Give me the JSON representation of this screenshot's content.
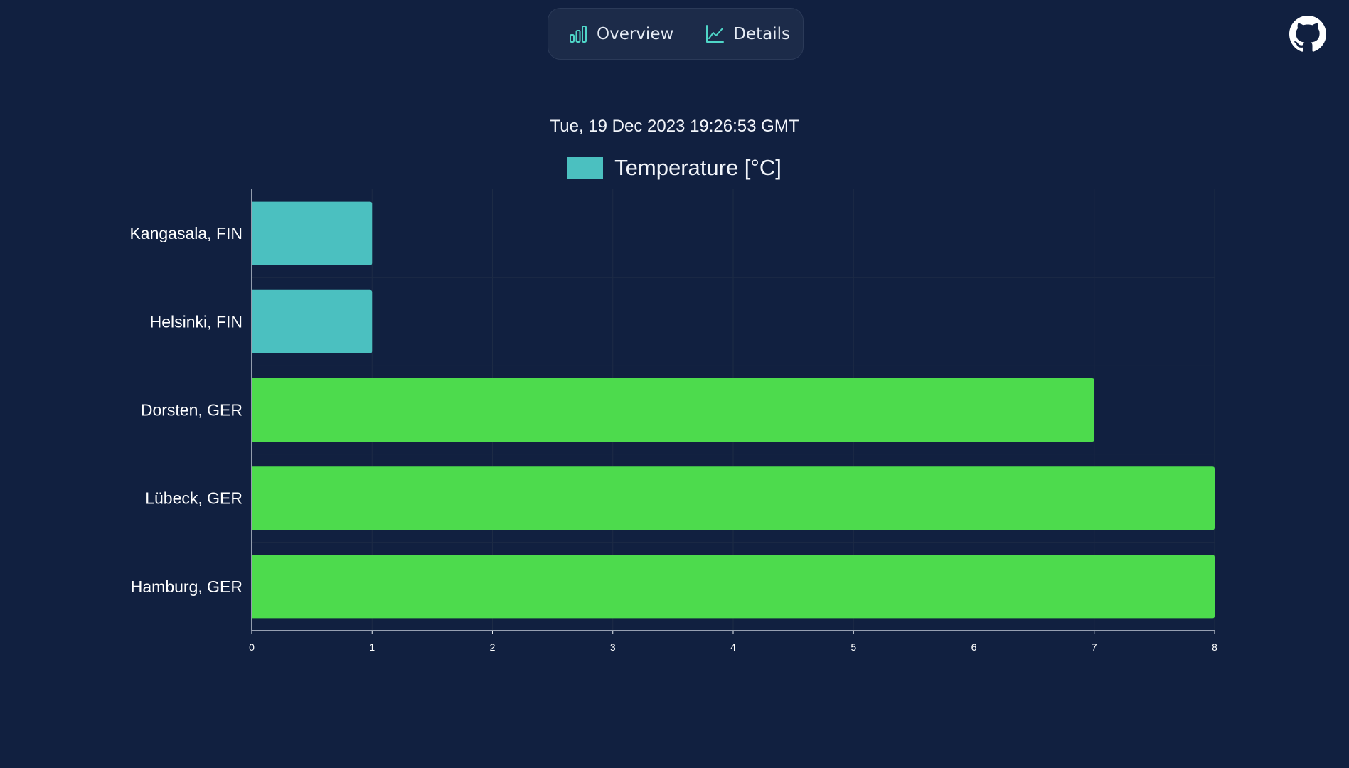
{
  "nav": {
    "overview_label": "Overview",
    "details_label": "Details",
    "overview_icon": "bar-chart-icon",
    "details_icon": "line-chart-icon",
    "accent": "#4fd6c8"
  },
  "github_icon": "github-icon",
  "timestamp": "Tue, 19 Dec 2023 19:26:53 GMT",
  "legend": {
    "label": "Temperature [°C]",
    "color": "#4bc0c0"
  },
  "chart_data": {
    "type": "bar",
    "orientation": "horizontal",
    "categories": [
      "Kangasala, FIN",
      "Helsinki, FIN",
      "Dorsten, GER",
      "Lübeck, GER",
      "Hamburg, GER"
    ],
    "series": [
      {
        "name": "Temperature [°C]",
        "values": [
          1,
          1,
          7,
          8,
          8
        ],
        "colors": [
          "#4bc0c0",
          "#4bc0c0",
          "#4ddb4d",
          "#4ddb4d",
          "#4ddb4d"
        ]
      }
    ],
    "xlim": [
      0,
      8
    ],
    "xticks": [
      "0",
      "1",
      "2",
      "3",
      "4",
      "5",
      "6",
      "7",
      "8"
    ],
    "grid": true,
    "legend_position": "top"
  }
}
